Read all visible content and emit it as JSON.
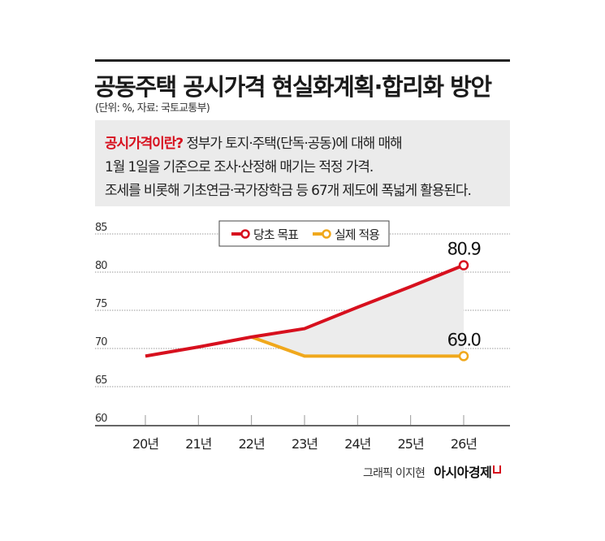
{
  "header": {
    "title": "공동주택 공시가격 현실화계획·합리화 방안",
    "subtitle": "(단위: %, 자료: 국토교통부)"
  },
  "info": {
    "highlight": "공시가격이란?",
    "line1": " 정부가 토지·주택(단독·공동)에 대해 매해",
    "line2": "1월 1일을 기준으로 조사·산정해 매기는 적정 가격.",
    "line3": "조세를 비롯해 기초연금·국가장학금 등 67개 제도에 폭넓게 활용된다."
  },
  "chart_data": {
    "type": "line",
    "categories": [
      "20년",
      "21년",
      "22년",
      "23년",
      "24년",
      "25년",
      "26년"
    ],
    "series": [
      {
        "name": "당초 목표",
        "color": "#d7101e",
        "values": [
          69.0,
          70.2,
          71.5,
          72.6,
          75.4,
          78.1,
          80.9
        ]
      },
      {
        "name": "실제 적용",
        "color": "#f0a81c",
        "values": [
          null,
          null,
          71.5,
          69.0,
          69.0,
          69.0,
          69.0
        ]
      }
    ],
    "data_labels": [
      "80.9",
      "69.0"
    ],
    "yticks": [
      "60",
      "65",
      "70",
      "75",
      "80",
      "85"
    ],
    "ylim": [
      60,
      85
    ],
    "grid": true,
    "legend": "top-center",
    "gap_fill_color": "#ececec"
  },
  "footer": {
    "credit": "그래픽 이지현",
    "brand": "아시아경제"
  }
}
